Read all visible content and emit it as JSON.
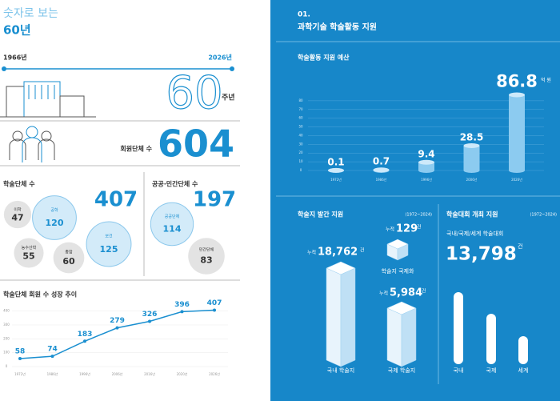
{
  "left": {
    "header": {
      "subtitle": "숫자로 보는",
      "title": "60년"
    },
    "timeline": {
      "start": "1966년",
      "end": "2026년"
    },
    "anniversary": {
      "number": "60",
      "unit": "주년"
    },
    "members": {
      "label": "회원단체 수",
      "value": 604
    },
    "academic": {
      "label": "학술단체 수",
      "total": 407,
      "fields": [
        {
          "name": "이학",
          "value": 47
        },
        {
          "name": "공학",
          "value": 120
        },
        {
          "name": "농수산학",
          "value": 55
        },
        {
          "name": "종합",
          "value": 60
        },
        {
          "name": "보건",
          "value": 125
        }
      ]
    },
    "public": {
      "label": "공공·민간단체 수",
      "total": 197,
      "types": [
        {
          "name": "공공단체",
          "value": 114
        },
        {
          "name": "민간단체",
          "value": 83
        }
      ]
    }
  },
  "chart_data": [
    {
      "type": "line",
      "title": "학술단체 회원 수 성장 추이",
      "categories": [
        "1972년",
        "1986년",
        "1996년",
        "2006년",
        "2016년",
        "2020년",
        "2026년"
      ],
      "values": [
        58,
        74,
        183,
        279,
        326,
        396,
        407
      ],
      "color": "#1a8fd0",
      "ylim": [
        0,
        450
      ],
      "yticks": [
        0,
        100,
        200,
        300,
        400
      ],
      "grid": true
    },
    {
      "type": "bar",
      "title": "학술활동 지원 예산",
      "categories": [
        "1972년",
        "1986년",
        "1996년",
        "2006년",
        "2026년"
      ],
      "values": [
        0.1,
        0.7,
        9.4,
        28.5,
        86.8
      ],
      "unit": "억 원",
      "color": "#8ccbf0",
      "ylim": [
        0,
        90
      ],
      "yticks": [
        0,
        10,
        20,
        30,
        40,
        50,
        60,
        70,
        80
      ],
      "grid": true
    }
  ],
  "right": {
    "header": {
      "number": "01.",
      "title": "과학기술 학술활동 지원"
    },
    "journals": {
      "title": "학술지 발간 지원",
      "period": "(1972~2024)",
      "items": [
        {
          "prefix": "누적",
          "value": "18,762",
          "unit": "건",
          "name": "국내 학술지"
        },
        {
          "prefix": "누적",
          "value": "129",
          "unit": "건",
          "name": "학술지 국제화"
        },
        {
          "prefix": "누적",
          "value": "5,984",
          "unit": "건",
          "name": "국제 학술지"
        }
      ]
    },
    "conferences": {
      "title": "학술대회 개최 지원",
      "period": "(1972~2024)",
      "subtitle": "국내/국제/세계 학술대회",
      "value": "13,798",
      "unit": "건",
      "categories": [
        "국내",
        "국제",
        "세계"
      ]
    }
  }
}
